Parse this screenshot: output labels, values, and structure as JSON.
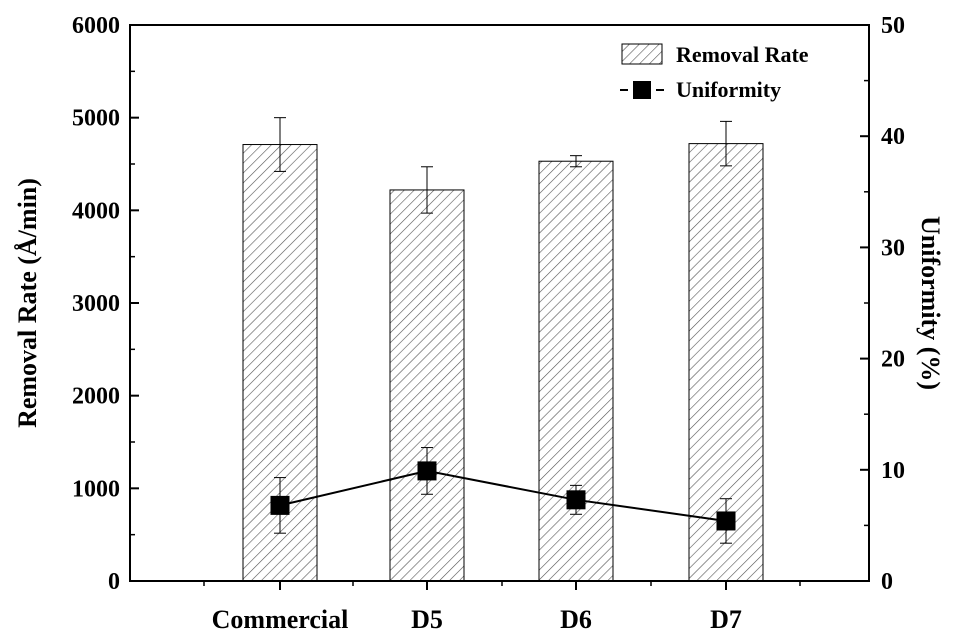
{
  "chart_data": {
    "type": "bar",
    "categories": [
      "Commercial",
      "D5",
      "D6",
      "D7"
    ],
    "series": [
      {
        "name": "Removal Rate",
        "kind": "bar",
        "axis": "left",
        "values": [
          4710,
          4220,
          4530,
          4720
        ],
        "error": [
          290,
          250,
          60,
          240
        ]
      },
      {
        "name": "Uniformity",
        "kind": "line-marker",
        "axis": "right",
        "values": [
          6.8,
          9.9,
          7.3,
          5.4
        ],
        "error": [
          2.5,
          2.1,
          1.3,
          2.0
        ]
      }
    ],
    "ylabel_left": "Removal Rate (Å/min)",
    "ylabel_right": "Uniformity (%)",
    "ylim_left": [
      0,
      6000
    ],
    "ylim_right": [
      0,
      50
    ],
    "yticks_left": [
      0,
      1000,
      2000,
      3000,
      4000,
      5000,
      6000
    ],
    "yticks_right": [
      0,
      10,
      20,
      30,
      40,
      50
    ],
    "legend_position": "top-right",
    "grid": false,
    "colors": {
      "bar_fill": "#ffffff",
      "hatch": "#555555",
      "line": "#000000",
      "marker": "#000000"
    }
  }
}
